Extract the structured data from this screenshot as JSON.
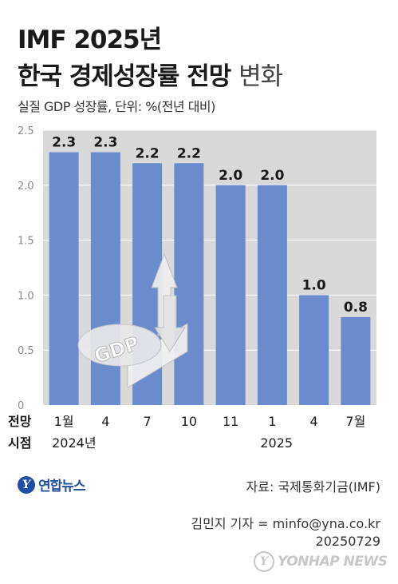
{
  "header": {
    "title_line1": "IMF 2025년",
    "title_line2_bold": "한국 경제성장률 전망",
    "title_line2_light": "변화",
    "subtitle": "실질 GDP 성장률, 단위: %(전년 대비)"
  },
  "chart_data": {
    "type": "bar",
    "title": "IMF 2025년 한국 경제성장률 전망 변화",
    "ylabel": "",
    "xlabel": "",
    "ylim": [
      0,
      2.5
    ],
    "yticks": [
      "0",
      "0.5",
      "1.0",
      "1.5",
      "2.0",
      "2.5"
    ],
    "categories": [
      "1월",
      "4",
      "7",
      "10",
      "11",
      "1",
      "4",
      "7월"
    ],
    "values": [
      2.3,
      2.3,
      2.2,
      2.2,
      2.0,
      2.0,
      1.0,
      0.8
    ],
    "value_labels": [
      "2.3",
      "2.3",
      "2.2",
      "2.2",
      "2.0",
      "2.0",
      "1.0",
      "0.8"
    ],
    "axis_title_line1": "전망",
    "axis_title_line2": "시점",
    "year_labels": [
      {
        "label": "2024년",
        "under_category": 0
      },
      {
        "label": "2025",
        "under_category": 5
      }
    ],
    "grid": true,
    "bar_color": "#6a8bcc",
    "plot_bg": "#d9d9d9"
  },
  "footer": {
    "logo_text": "연합뉴스",
    "source": "자료: 국제통화기금(IMF)",
    "reporter_line1": "김민지 기자 = minfo@yna.co.kr",
    "reporter_line2": "20250729",
    "watermark": "YONHAP NEWS"
  }
}
